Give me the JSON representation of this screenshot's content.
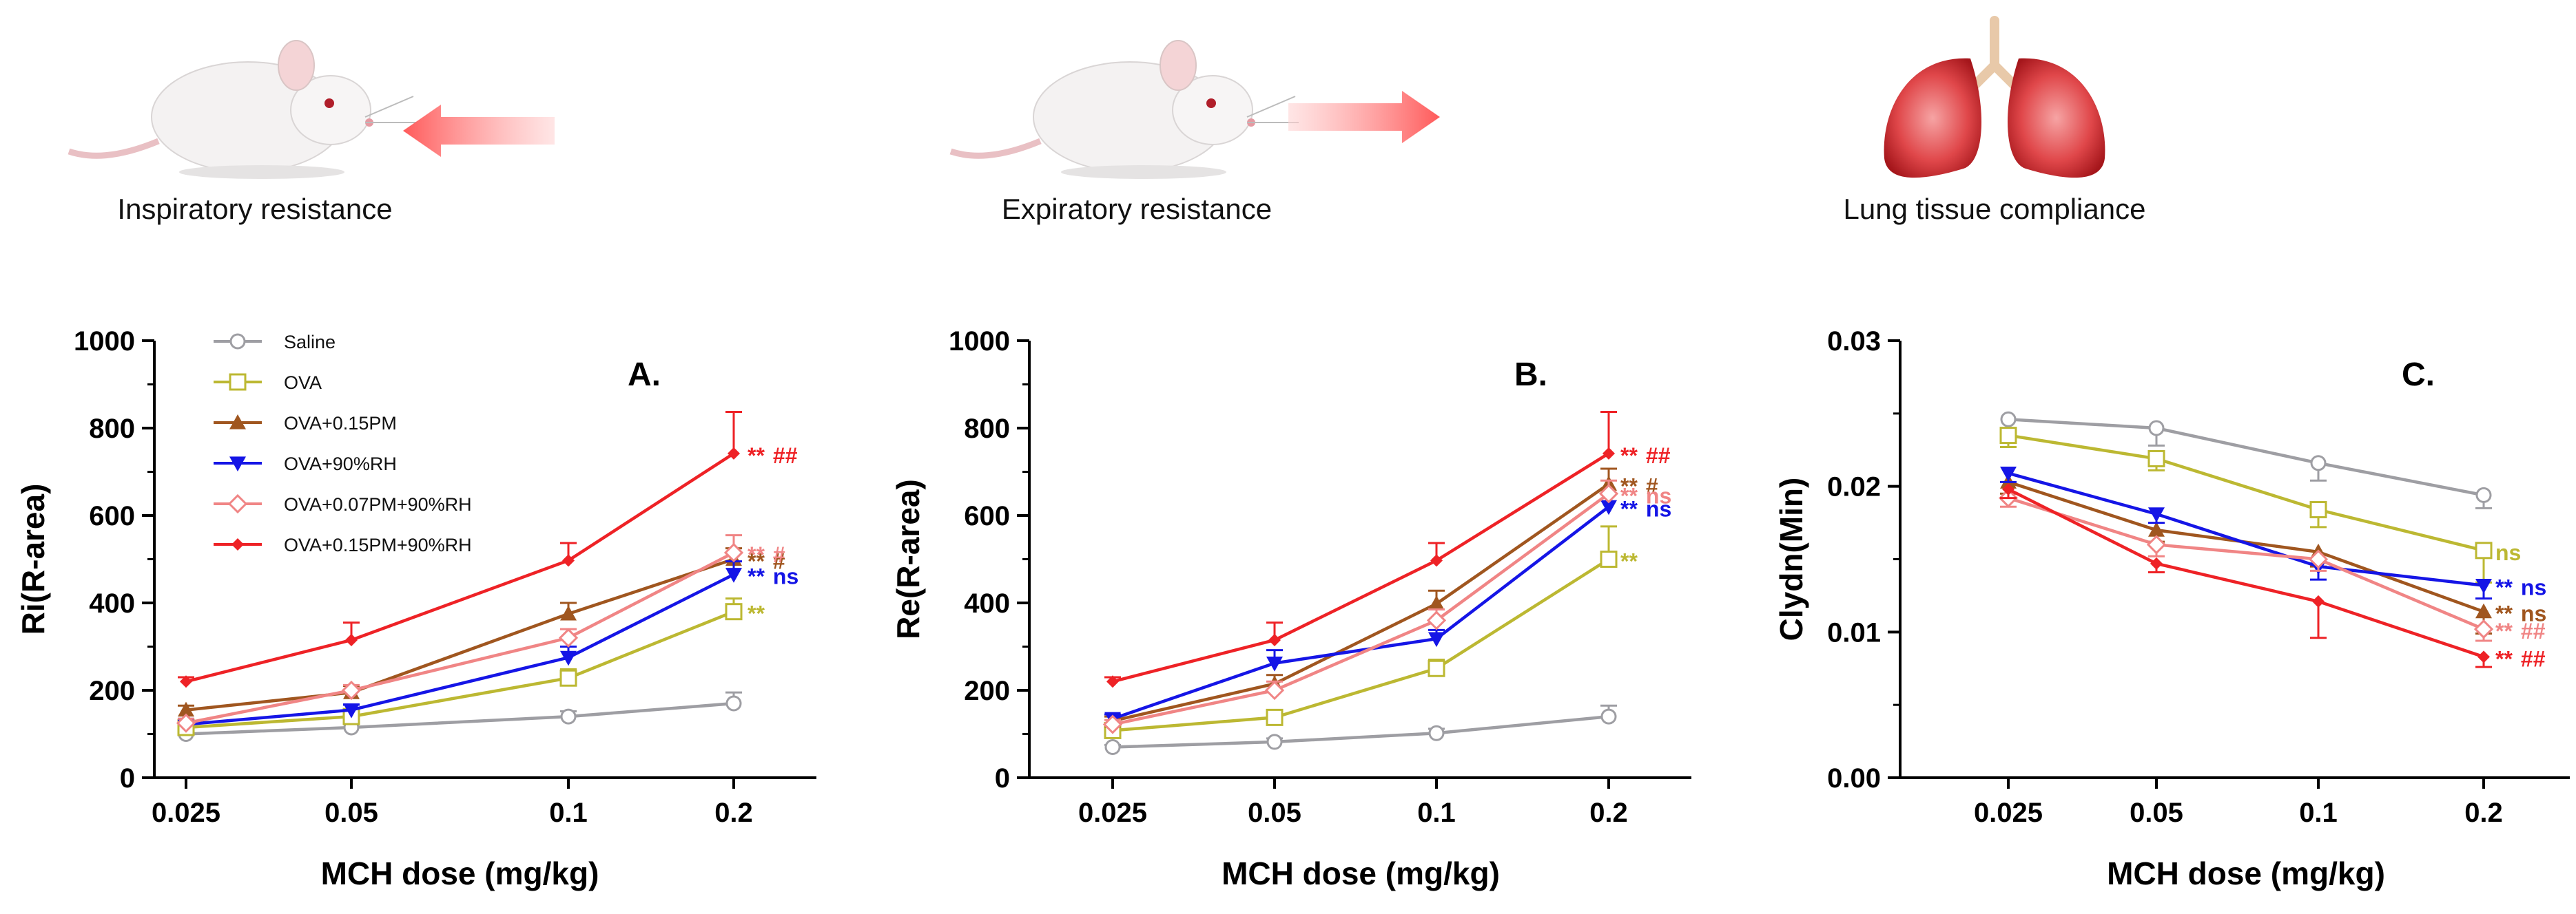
{
  "illustrations": [
    {
      "caption": "Inspiratory resistance",
      "icon": "mouse-inhale-icon"
    },
    {
      "caption": "Expiratory resistance",
      "icon": "mouse-exhale-icon"
    },
    {
      "caption": "Lung tissue compliance",
      "icon": "lungs-icon"
    }
  ],
  "legend": [
    {
      "name": "Saline",
      "color": "#9e9ea3",
      "marker": "circle"
    },
    {
      "name": "OVA",
      "color": "#bcb832",
      "marker": "square"
    },
    {
      "name": "OVA+0.15PM",
      "color": "#a0561f",
      "marker": "triangle-up"
    },
    {
      "name": "OVA+90%RH",
      "color": "#1515e6",
      "marker": "triangle-down"
    },
    {
      "name": "OVA+0.07PM+90%RH",
      "color": "#f08585",
      "marker": "diamond"
    },
    {
      "name": "OVA+0.15PM+90%RH",
      "color": "#ee2226",
      "marker": "diamond-filled"
    }
  ],
  "chart_data": [
    {
      "type": "line",
      "panel": "A.",
      "title": "",
      "xlabel": "MCH dose (mg/kg)",
      "ylabel": "Ri(R-area)",
      "categories": [
        "0.025",
        "0.05",
        "0.1",
        "0.2"
      ],
      "ylim": [
        0,
        1000
      ],
      "yticks": [
        "0",
        "200",
        "400",
        "600",
        "800",
        "1000"
      ],
      "series": [
        {
          "name": "Saline",
          "values": [
            100,
            115,
            140,
            170
          ],
          "errors": [
            10,
            10,
            12,
            25
          ],
          "sig": []
        },
        {
          "name": "OVA",
          "values": [
            115,
            140,
            228,
            380
          ],
          "errors": [
            10,
            10,
            20,
            30
          ],
          "sig": [
            {
              "text": "**",
              "color": "#bcb832"
            }
          ]
        },
        {
          "name": "OVA+0.15PM",
          "values": [
            155,
            195,
            375,
            500
          ],
          "errors": [
            10,
            15,
            25,
            25
          ],
          "sig": [
            {
              "text": "**",
              "color": "#a0561f"
            },
            {
              "text": "#",
              "color": "#a0561f"
            }
          ]
        },
        {
          "name": "OVA+90%RH",
          "values": [
            122,
            155,
            275,
            465
          ],
          "errors": [
            10,
            12,
            25,
            30
          ],
          "sig": [
            {
              "text": "**",
              "color": "#1515e6"
            },
            {
              "text": "ns",
              "color": "#1515e6"
            }
          ]
        },
        {
          "name": "OVA+0.07PM+90%RH",
          "values": [
            125,
            200,
            320,
            515
          ],
          "errors": [
            10,
            12,
            20,
            40
          ],
          "sig": [
            {
              "text": "**",
              "color": "#f08585"
            },
            {
              "text": "#",
              "color": "#f08585"
            }
          ]
        },
        {
          "name": "OVA+0.15PM+90%RH",
          "values": [
            220,
            315,
            497,
            742
          ],
          "errors": [
            10,
            40,
            40,
            95
          ],
          "sig": [
            {
              "text": "**",
              "color": "#ee2226"
            },
            {
              "text": "##",
              "color": "#ee2226"
            }
          ]
        }
      ]
    },
    {
      "type": "line",
      "panel": "B.",
      "title": "",
      "xlabel": "MCH dose (mg/kg)",
      "ylabel": "Re(R-area)",
      "categories": [
        "0.025",
        "0.05",
        "0.1",
        "0.2"
      ],
      "ylim": [
        0,
        1000
      ],
      "yticks": [
        "0",
        "200",
        "400",
        "600",
        "800",
        "1000"
      ],
      "series": [
        {
          "name": "Saline",
          "values": [
            70,
            82,
            102,
            140
          ],
          "errors": [
            5,
            8,
            10,
            25
          ],
          "sig": []
        },
        {
          "name": "OVA",
          "values": [
            108,
            138,
            250,
            500
          ],
          "errors": [
            10,
            10,
            20,
            75
          ],
          "sig": [
            {
              "text": "**",
              "color": "#bcb832"
            }
          ]
        },
        {
          "name": "OVA+0.15PM",
          "values": [
            130,
            215,
            398,
            672
          ],
          "errors": [
            10,
            20,
            30,
            35
          ],
          "sig": [
            {
              "text": "**",
              "color": "#a0561f"
            },
            {
              "text": "#",
              "color": "#a0561f"
            }
          ]
        },
        {
          "name": "OVA+90%RH",
          "values": [
            135,
            262,
            318,
            620
          ],
          "errors": [
            10,
            30,
            20,
            30
          ],
          "sig": [
            {
              "text": "**",
              "color": "#1515e6"
            },
            {
              "text": "ns",
              "color": "#1515e6"
            }
          ]
        },
        {
          "name": "OVA+0.07PM+90%RH",
          "values": [
            122,
            200,
            360,
            650
          ],
          "errors": [
            10,
            20,
            25,
            30
          ],
          "sig": [
            {
              "text": "**",
              "color": "#f08585"
            },
            {
              "text": "ns",
              "color": "#f08585"
            }
          ]
        },
        {
          "name": "OVA+0.15PM+90%RH",
          "values": [
            220,
            315,
            497,
            742
          ],
          "errors": [
            10,
            40,
            40,
            95
          ],
          "sig": [
            {
              "text": "**",
              "color": "#ee2226"
            },
            {
              "text": "##",
              "color": "#ee2226"
            }
          ]
        }
      ]
    },
    {
      "type": "line",
      "panel": "C.",
      "title": "",
      "xlabel": "MCH dose (mg/kg)",
      "ylabel": "Clydn(Min)",
      "categories": [
        "0.025",
        "0.05",
        "0.1",
        "0.2"
      ],
      "ylim": [
        0,
        0.03
      ],
      "yticks": [
        "0.00",
        "0.01",
        "0.02",
        "0.03"
      ],
      "series": [
        {
          "name": "Saline",
          "values": [
            0.0246,
            0.024,
            0.0216,
            0.0194
          ],
          "errors": [
            0.0012,
            0.0012,
            0.0012,
            0.0009
          ],
          "sig": []
        },
        {
          "name": "OVA",
          "values": [
            0.0235,
            0.0219,
            0.0184,
            0.0156
          ],
          "errors": [
            0.0008,
            0.0008,
            0.0012,
            0.0022
          ],
          "sig": [
            {
              "text": "ns",
              "color": "#bcb832"
            }
          ]
        },
        {
          "name": "OVA+0.15PM",
          "values": [
            0.0203,
            0.017,
            0.0155,
            0.0114
          ],
          "errors": [
            0.0008,
            0.0008,
            0.001,
            0.0015
          ],
          "sig": [
            {
              "text": "**",
              "color": "#a0561f"
            },
            {
              "text": "ns",
              "color": "#a0561f"
            }
          ]
        },
        {
          "name": "OVA+90%RH",
          "values": [
            0.0209,
            0.0181,
            0.0145,
            0.0132
          ],
          "errors": [
            0.0006,
            0.0006,
            0.0009,
            0.0009
          ],
          "sig": [
            {
              "text": "**",
              "color": "#1515e6"
            },
            {
              "text": "ns",
              "color": "#1515e6"
            }
          ]
        },
        {
          "name": "OVA+0.07PM+90%RH",
          "values": [
            0.0192,
            0.016,
            0.015,
            0.0102
          ],
          "errors": [
            0.0006,
            0.0008,
            0.0008,
            0.0008
          ],
          "sig": [
            {
              "text": "**",
              "color": "#f08585"
            },
            {
              "text": "##",
              "color": "#f08585"
            }
          ]
        },
        {
          "name": "OVA+0.15PM+90%RH",
          "values": [
            0.0198,
            0.0147,
            0.0121,
            0.0083
          ],
          "errors": [
            0.0006,
            0.0006,
            0.0025,
            0.0007
          ],
          "sig": [
            {
              "text": "**",
              "color": "#ee2226"
            },
            {
              "text": "##",
              "color": "#ee2226"
            }
          ]
        }
      ]
    }
  ]
}
